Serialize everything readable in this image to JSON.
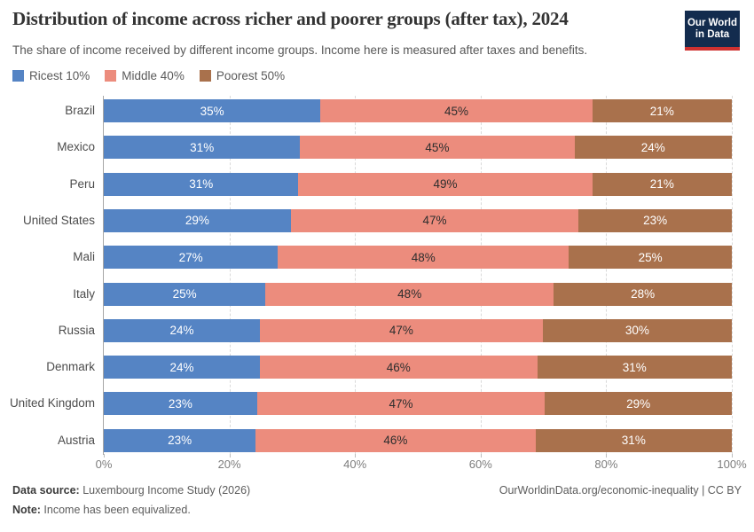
{
  "header": {
    "title": "Distribution of income across richer and poorer groups (after tax), 2024",
    "subtitle": "The share of income received by different income groups. Income here is measured after taxes and benefits.",
    "logo": {
      "line1": "Our World",
      "line2": "in Data"
    }
  },
  "colors": {
    "richest": "#5584C4",
    "middle": "#EC8C7D",
    "poorest": "#A9714C",
    "logo_bg": "#132C4E",
    "logo_stripe": "#CF3130"
  },
  "chart_data": {
    "type": "bar",
    "orientation": "horizontal",
    "stacked": true,
    "title": "Distribution of income across richer and poorer groups (after tax), 2024",
    "categories": [
      "Brazil",
      "Mexico",
      "Peru",
      "United States",
      "Mali",
      "Italy",
      "Russia",
      "Denmark",
      "United Kingdom",
      "Austria"
    ],
    "series": [
      {
        "name": "Ricest 10%",
        "color": "#5584C4",
        "label_color": "#ffffff",
        "values": [
          35,
          31,
          31,
          29,
          27,
          25,
          24,
          24,
          23,
          23
        ]
      },
      {
        "name": "Middle 40%",
        "color": "#EC8C7D",
        "label_color": "#2e2e2e",
        "values": [
          45,
          45,
          49,
          47,
          48,
          48,
          47,
          46,
          47,
          46
        ]
      },
      {
        "name": "Poorest 50%",
        "color": "#A9714C",
        "label_color": "#ffffff",
        "values": [
          21,
          24,
          21,
          23,
          25,
          28,
          30,
          31,
          29,
          31
        ]
      }
    ],
    "value_suffix": "%",
    "x_ticks": [
      "0%",
      "20%",
      "40%",
      "60%",
      "80%",
      "100%"
    ],
    "x_tick_values": [
      0,
      20,
      40,
      60,
      80,
      100
    ],
    "xlim": [
      0,
      100
    ],
    "grid": true,
    "legend_position": "top"
  },
  "footer": {
    "datasource_label": "Data source:",
    "datasource_value": " Luxembourg Income Study (2026)",
    "note_label": "Note:",
    "note_value": " Income has been equivalized.",
    "credit": "OurWorldinData.org/economic-inequality | CC BY"
  }
}
